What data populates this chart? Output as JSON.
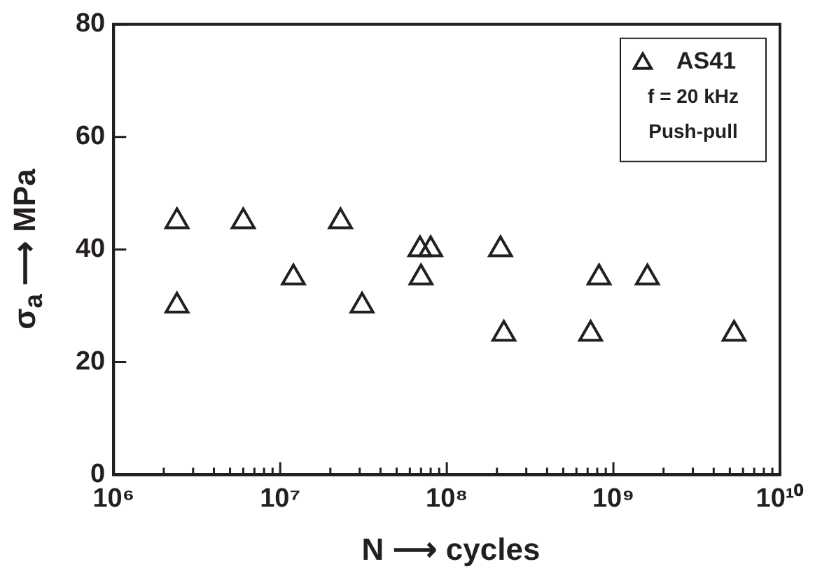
{
  "chart_data": {
    "type": "scatter",
    "xlabel": "N ⟶ cycles",
    "ylabel": "σ$_{a}$ ⟶ MPa",
    "log": "x",
    "xlim": [
      1000000,
      10000000000
    ],
    "ylim": [
      0,
      80
    ],
    "xticks": [
      {
        "value": 1000000,
        "label": "10⁶"
      },
      {
        "value": 2000000,
        "label": null
      },
      {
        "value": 3000000,
        "label": null
      },
      {
        "value": 4000000,
        "label": null
      },
      {
        "value": 5000000,
        "label": null
      },
      {
        "value": 6000000,
        "label": null
      },
      {
        "value": 7000000,
        "label": null
      },
      {
        "value": 8000000,
        "label": null
      },
      {
        "value": 9000000,
        "label": null
      },
      {
        "value": 10000000,
        "label": "10⁷"
      },
      {
        "value": 20000000,
        "label": null
      },
      {
        "value": 30000000,
        "label": null
      },
      {
        "value": 40000000,
        "label": null
      },
      {
        "value": 50000000,
        "label": null
      },
      {
        "value": 60000000,
        "label": null
      },
      {
        "value": 70000000,
        "label": null
      },
      {
        "value": 80000000,
        "label": null
      },
      {
        "value": 90000000,
        "label": null
      },
      {
        "value": 100000000,
        "label": "10⁸"
      },
      {
        "value": 200000000,
        "label": null
      },
      {
        "value": 300000000,
        "label": null
      },
      {
        "value": 400000000,
        "label": null
      },
      {
        "value": 500000000,
        "label": null
      },
      {
        "value": 600000000,
        "label": null
      },
      {
        "value": 700000000,
        "label": null
      },
      {
        "value": 800000000,
        "label": null
      },
      {
        "value": 900000000,
        "label": null
      },
      {
        "value": 1000000000,
        "label": "10⁹"
      },
      {
        "value": 2000000000,
        "label": null
      },
      {
        "value": 3000000000,
        "label": null
      },
      {
        "value": 4000000000,
        "label": null
      },
      {
        "value": 5000000000,
        "label": null
      },
      {
        "value": 6000000000,
        "label": null
      },
      {
        "value": 7000000000,
        "label": null
      },
      {
        "value": 8000000000,
        "label": null
      },
      {
        "value": 9000000000,
        "label": null
      },
      {
        "value": 10000000000,
        "label": "10¹⁰"
      }
    ],
    "yticks": [
      0,
      20,
      40,
      60,
      80
    ],
    "grid": false,
    "legend": "top right",
    "marker": "triangle",
    "annotations": [
      "f = 20 kHz",
      "Push-pull"
    ],
    "series": [
      {
        "name": "AS41",
        "color": "#231f20",
        "x": [
          2400000,
          2400000,
          6000000,
          12000000,
          23000000,
          31000000,
          69000000,
          70000000,
          80000000,
          210000000,
          220000000,
          730000000,
          820000000,
          1600000000,
          5300000000
        ],
        "values": [
          45,
          30,
          45,
          35,
          45,
          30,
          40,
          35,
          40,
          40,
          25,
          25,
          35,
          35,
          25
        ]
      }
    ]
  }
}
